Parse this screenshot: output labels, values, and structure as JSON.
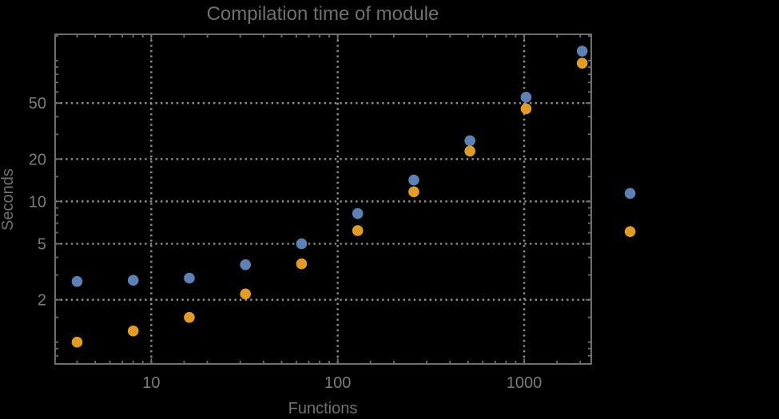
{
  "chart_data": {
    "type": "scatter",
    "title": "Compilation time of module",
    "xlabel": "Functions",
    "ylabel": "Seconds",
    "x_scale": "log",
    "y_scale": "log",
    "xlim": [
      3.05,
      2290
    ],
    "ylim": [
      0.7,
      154
    ],
    "grid": "dotted gray lines at labeled major ticks, both axes",
    "legend": "none",
    "x_tick_values": [
      10,
      100,
      1000
    ],
    "x_tick_labels": [
      "10",
      "100",
      "1000"
    ],
    "y_tick_values": [
      2,
      5,
      10,
      20,
      50
    ],
    "y_tick_labels": [
      "2",
      "5",
      "10",
      "20",
      "50"
    ],
    "x": [
      4,
      8,
      16,
      32,
      64,
      128,
      256,
      512,
      1024,
      2048,
      3700
    ],
    "series": [
      {
        "name": "blue-points",
        "color": "#5e81b5",
        "values": [
          2.7,
          2.75,
          2.85,
          3.55,
          5.0,
          8.2,
          14.2,
          27.0,
          55.0,
          117.0,
          11.4
        ]
      },
      {
        "name": "orange-points",
        "color": "#e19c24",
        "values": [
          1.0,
          1.2,
          1.5,
          2.2,
          3.6,
          6.2,
          11.7,
          22.8,
          45.5,
          96.0,
          6.1
        ]
      }
    ],
    "note": "rightmost pair of points is drawn outside the plot frame on the right",
    "colors": {
      "background": "#000000",
      "frame": "#6e6e6e",
      "grid": "#909090",
      "tick_label": "#7b7b7b",
      "title": "#707070",
      "axis_label": "#707070"
    }
  }
}
